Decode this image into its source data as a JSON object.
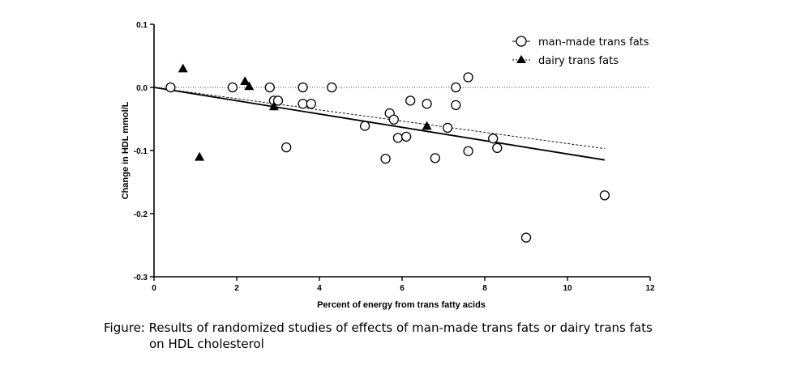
{
  "chart_data": {
    "type": "scatter",
    "title": "",
    "xlabel": "Percent of energy from trans fatty acids",
    "ylabel": "Change in HDL mmol/L",
    "xlim": [
      0,
      12
    ],
    "ylim": [
      -0.3,
      0.1
    ],
    "x_ticks": [
      0,
      2,
      4,
      6,
      8,
      10,
      12
    ],
    "y_ticks": [
      0.1,
      0.0,
      -0.1,
      -0.2,
      -0.3
    ],
    "x_tick_labels": [
      "0",
      "2",
      "4",
      "6",
      "8",
      "10",
      "12"
    ],
    "y_tick_labels": [
      "0.1",
      "0.0",
      "-0.1",
      "-0.2",
      "-0.3"
    ],
    "legend_position": "top-right",
    "series": [
      {
        "name": "man-made trans fats",
        "marker": "open-circle",
        "points": [
          [
            0.4,
            0.0
          ],
          [
            1.9,
            0.0
          ],
          [
            2.8,
            0.0
          ],
          [
            3.6,
            0.0
          ],
          [
            4.3,
            0.0
          ],
          [
            2.9,
            -0.021
          ],
          [
            3.0,
            -0.021
          ],
          [
            3.6,
            -0.026
          ],
          [
            3.8,
            -0.026
          ],
          [
            3.2,
            -0.095
          ],
          [
            5.1,
            -0.061
          ],
          [
            5.6,
            -0.113
          ],
          [
            5.7,
            -0.041
          ],
          [
            5.8,
            -0.051
          ],
          [
            5.9,
            -0.08
          ],
          [
            6.1,
            -0.078
          ],
          [
            6.2,
            -0.021
          ],
          [
            6.6,
            -0.026
          ],
          [
            6.8,
            -0.112
          ],
          [
            7.1,
            -0.064
          ],
          [
            7.3,
            0.0
          ],
          [
            7.3,
            -0.028
          ],
          [
            7.6,
            0.016
          ],
          [
            7.6,
            -0.101
          ],
          [
            8.2,
            -0.081
          ],
          [
            8.3,
            -0.096
          ],
          [
            9.0,
            -0.238
          ],
          [
            10.9,
            -0.171
          ]
        ],
        "fit_line": {
          "x": [
            0.0,
            10.9
          ],
          "y": [
            0.0,
            -0.115
          ],
          "style": "solid"
        }
      },
      {
        "name": "dairy trans fats",
        "marker": "filled-triangle",
        "points": [
          [
            0.7,
            0.03
          ],
          [
            1.1,
            -0.11
          ],
          [
            2.2,
            0.01
          ],
          [
            2.3,
            0.002
          ],
          [
            2.9,
            -0.03
          ],
          [
            6.6,
            -0.061
          ]
        ],
        "fit_line": {
          "x": [
            0.0,
            10.9
          ],
          "y": [
            0.0,
            -0.097
          ],
          "style": "dashed"
        }
      }
    ],
    "reference_line": {
      "y": 0.0,
      "style": "dotted"
    }
  },
  "caption": {
    "line1": "Figure: Results of randomized studies of effects of man-made trans fats or dairy trans fats",
    "line2": "on HDL cholesterol"
  }
}
